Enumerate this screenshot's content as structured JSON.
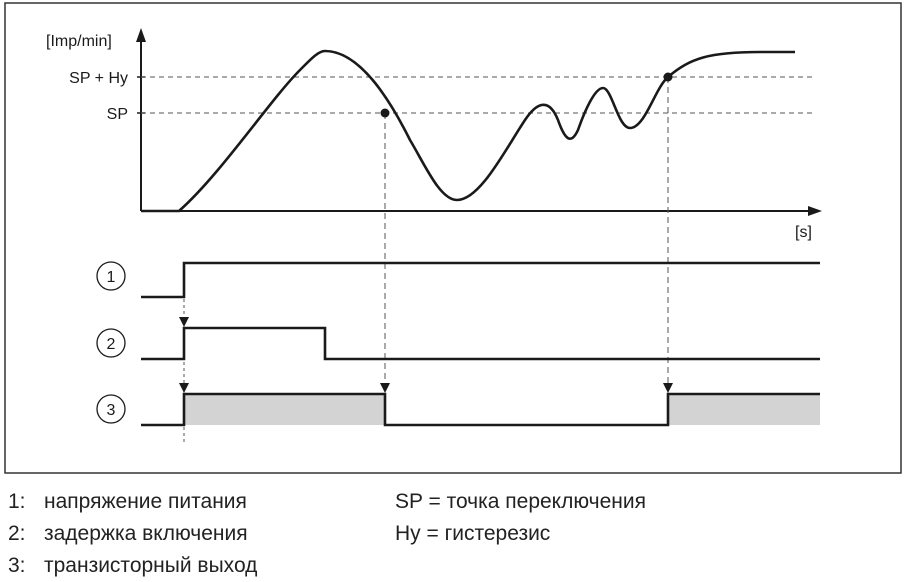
{
  "diagram": {
    "y_axis_label": "[Imp/min]",
    "x_axis_label": "[s]",
    "level_labels": {
      "sp_hy": "SP + Hy",
      "sp": "SP"
    },
    "signal_markers": [
      "1",
      "2",
      "3"
    ]
  },
  "legend": {
    "items": [
      {
        "num": "1:",
        "text": "напряжение питания"
      },
      {
        "num": "2:",
        "text": "задержка включения"
      },
      {
        "num": "3:",
        "text": "транзисторный выход"
      }
    ],
    "definitions": [
      "SP = точка переключения",
      "Hy = гистерезис"
    ]
  },
  "colors": {
    "line": "#1a1a1a",
    "dashed": "#555555",
    "fill": "#d3d3d3",
    "frame": "#333333"
  }
}
